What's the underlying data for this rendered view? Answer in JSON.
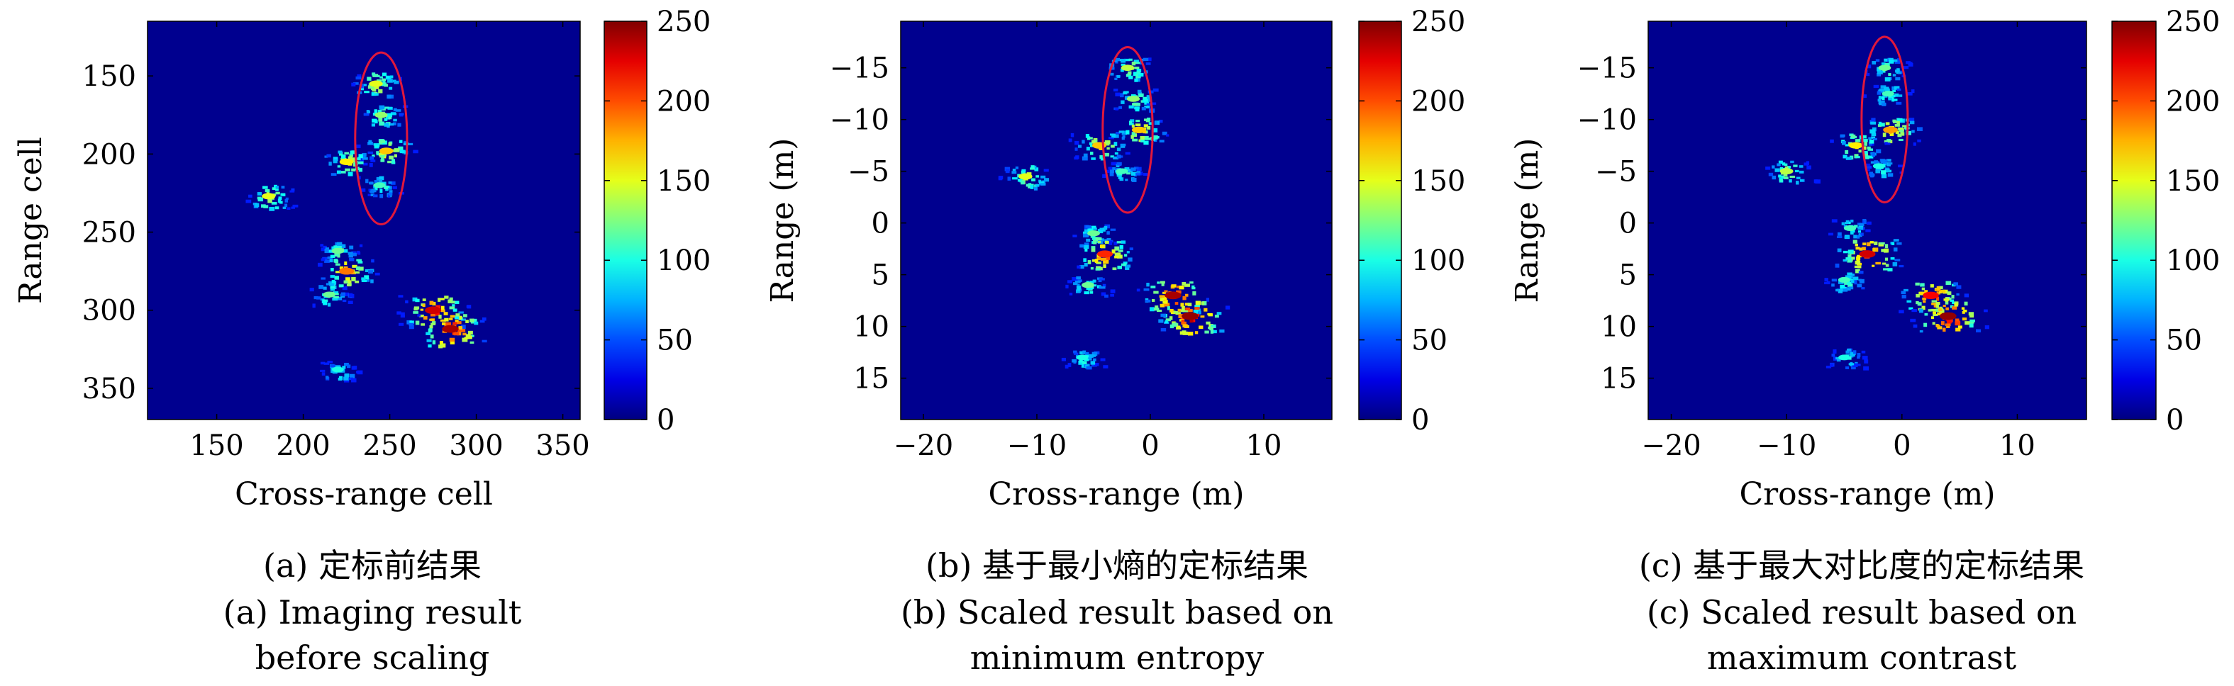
{
  "panels": [
    {
      "caption_zh": "(a) 定标前结果",
      "caption_en_1": "(a) Imaging result",
      "caption_en_2": "before scaling",
      "chart_data": {
        "type": "heatmap",
        "xlabel": "Cross-range cell",
        "ylabel": "Range cell",
        "xlim": [
          110,
          360
        ],
        "ylim": [
          370,
          115
        ],
        "xticks": [
          "150",
          "200",
          "250",
          "300",
          "350"
        ],
        "yticks": [
          "150",
          "200",
          "250",
          "300",
          "350"
        ],
        "colorbar": {
          "min": 0,
          "max": 250,
          "ticks": [
            "0",
            "50",
            "100",
            "150",
            "200",
            "250"
          ],
          "colormap": "jet"
        },
        "annotation": {
          "shape": "ellipse",
          "color": "#e0183c",
          "center": [
            245,
            190
          ],
          "radii": [
            15,
            55
          ]
        },
        "scatterers": [
          {
            "x": 242,
            "y": 155,
            "value": 150
          },
          {
            "x": 245,
            "y": 175,
            "value": 130
          },
          {
            "x": 248,
            "y": 198,
            "value": 170
          },
          {
            "x": 244,
            "y": 220,
            "value": 110
          },
          {
            "x": 225,
            "y": 205,
            "value": 160
          },
          {
            "x": 180,
            "y": 227,
            "value": 150
          },
          {
            "x": 220,
            "y": 262,
            "value": 120
          },
          {
            "x": 225,
            "y": 275,
            "value": 190
          },
          {
            "x": 215,
            "y": 290,
            "value": 120
          },
          {
            "x": 275,
            "y": 300,
            "value": 230
          },
          {
            "x": 285,
            "y": 312,
            "value": 240
          },
          {
            "x": 220,
            "y": 338,
            "value": 100
          }
        ]
      }
    },
    {
      "caption_zh": "(b) 基于最小熵的定标结果",
      "caption_en_1": "(b) Scaled result based on",
      "caption_en_2": "minimum entropy",
      "chart_data": {
        "type": "heatmap",
        "xlabel": "Cross-range (m)",
        "ylabel": "Range (m)",
        "xlim": [
          -22,
          16
        ],
        "ylim": [
          19,
          -19.5
        ],
        "xticks": [
          "−20",
          "−10",
          "0",
          "10"
        ],
        "yticks": [
          "−15",
          "−10",
          "−5",
          "0",
          "5",
          "10",
          "15"
        ],
        "colorbar": {
          "min": 0,
          "max": 250,
          "ticks": [
            "0",
            "50",
            "100",
            "150",
            "200",
            "250"
          ],
          "colormap": "jet"
        },
        "annotation": {
          "shape": "ellipse",
          "color": "#e0183c",
          "center": [
            -2,
            -9
          ],
          "radii": [
            2.2,
            8
          ]
        },
        "scatterers": [
          {
            "x": -2,
            "y": -15,
            "value": 140
          },
          {
            "x": -1.5,
            "y": -12,
            "value": 130
          },
          {
            "x": -1,
            "y": -9,
            "value": 170
          },
          {
            "x": -2.5,
            "y": -5,
            "value": 110
          },
          {
            "x": -4.5,
            "y": -7.5,
            "value": 170
          },
          {
            "x": -11,
            "y": -4.5,
            "value": 150
          },
          {
            "x": -5,
            "y": 1,
            "value": 120
          },
          {
            "x": -4,
            "y": 3,
            "value": 210
          },
          {
            "x": -5.5,
            "y": 6,
            "value": 120
          },
          {
            "x": 2,
            "y": 7,
            "value": 240
          },
          {
            "x": 3.5,
            "y": 9,
            "value": 245
          },
          {
            "x": -6,
            "y": 13,
            "value": 100
          }
        ]
      }
    },
    {
      "caption_zh": "(c) 基于最大对比度的定标结果",
      "caption_en_1": "(c) Scaled result based on",
      "caption_en_2": "maximum contrast",
      "chart_data": {
        "type": "heatmap",
        "xlabel": "Cross-range (m)",
        "ylabel": "Range (m)",
        "xlim": [
          -22,
          16
        ],
        "ylim": [
          19,
          -19.5
        ],
        "xticks": [
          "−20",
          "−10",
          "0",
          "10"
        ],
        "yticks": [
          "−15",
          "−10",
          "−5",
          "0",
          "5",
          "10",
          "15"
        ],
        "colorbar": {
          "min": 0,
          "max": 250,
          "ticks": [
            "0",
            "50",
            "100",
            "150",
            "200",
            "250"
          ],
          "colormap": "jet"
        },
        "annotation": {
          "shape": "ellipse",
          "color": "#e0183c",
          "center": [
            -1.5,
            -10
          ],
          "radii": [
            2,
            8
          ]
        },
        "scatterers": [
          {
            "x": -1.5,
            "y": -15,
            "value": 120
          },
          {
            "x": -1.2,
            "y": -12.5,
            "value": 110
          },
          {
            "x": -1,
            "y": -9,
            "value": 180
          },
          {
            "x": -2,
            "y": -5.5,
            "value": 100
          },
          {
            "x": -4,
            "y": -7.5,
            "value": 160
          },
          {
            "x": -10,
            "y": -5,
            "value": 140
          },
          {
            "x": -4.5,
            "y": 0.5,
            "value": 110
          },
          {
            "x": -3,
            "y": 3,
            "value": 230
          },
          {
            "x": -5,
            "y": 5.5,
            "value": 110
          },
          {
            "x": 2.5,
            "y": 7,
            "value": 220
          },
          {
            "x": 4,
            "y": 9,
            "value": 245
          },
          {
            "x": -5,
            "y": 13,
            "value": 100
          }
        ]
      }
    }
  ]
}
